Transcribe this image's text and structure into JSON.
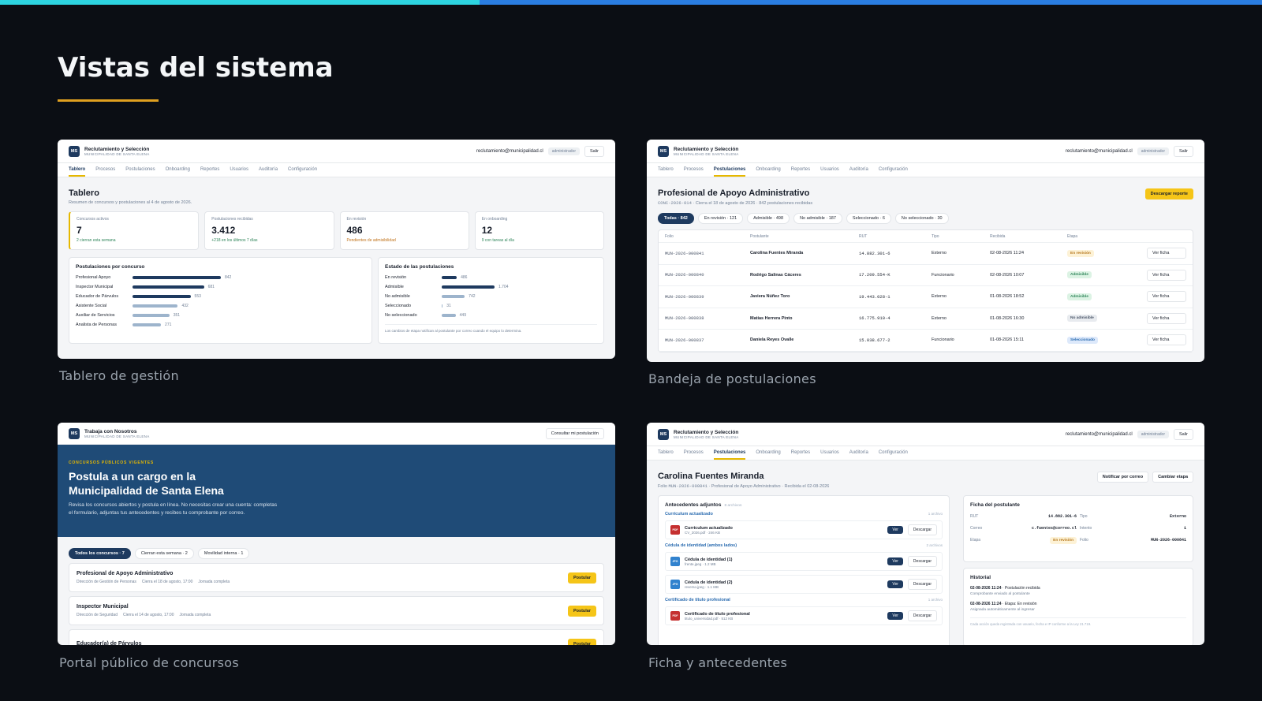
{
  "header": {
    "title": "Vistas del sistema"
  },
  "app": {
    "logo": "MS",
    "name": "Reclutamiento y Selección",
    "org": "MUNICIPALIDAD DE SANTA ELENA",
    "email": "reclutamiento@municipalidad.cl",
    "role": "administrador",
    "logout": "Salir",
    "tabs": [
      "Tablero",
      "Procesos",
      "Postulaciones",
      "Onboarding",
      "Reportes",
      "Usuarios",
      "Auditoría",
      "Configuración"
    ]
  },
  "dashboard": {
    "caption": "Tablero de gestión",
    "active_tab": 0,
    "title": "Tablero",
    "subtitle": "Resumen de concursos y postulaciones al 4 de agosto de 2026.",
    "stats": [
      {
        "label": "Concursos activos",
        "value": "7",
        "note": "2 cierran esta semana",
        "note_color": "#2f855a"
      },
      {
        "label": "Postulaciones recibidas",
        "value": "3.412",
        "note": "+218 en los últimos 7 días",
        "note_color": "#2f855a"
      },
      {
        "label": "En revisión",
        "value": "486",
        "note": "Pendientes de admisibilidad",
        "note_color": "#c0721a"
      },
      {
        "label": "En onboarding",
        "value": "12",
        "note": "9 con tareas al día",
        "note_color": "#2f855a"
      }
    ],
    "charts": [
      {
        "title": "Postulaciones por concurso",
        "items": [
          {
            "name": "Profesional Apoyo",
            "value": 842,
            "color": "#1e3a5f"
          },
          {
            "name": "Inspector Municipal",
            "value": 681,
            "color": "#1e3a5f"
          },
          {
            "name": "Educador de Párvulos",
            "value": 553,
            "color": "#1e3a5f"
          },
          {
            "name": "Asistente Social",
            "value": 432,
            "color": "#9db4cc"
          },
          {
            "name": "Auxiliar de Servicios",
            "value": 351,
            "color": "#9db4cc"
          },
          {
            "name": "Analista de Personas",
            "value": 271,
            "color": "#9db4cc"
          }
        ]
      },
      {
        "title": "Estado de las postulaciones",
        "items": [
          {
            "name": "En revisión",
            "value": 486,
            "color": "#1e3a5f"
          },
          {
            "name": "Admisible",
            "value": 1704,
            "label": "1.704",
            "color": "#1e3a5f"
          },
          {
            "name": "No admisible",
            "value": 742,
            "color": "#9db4cc"
          },
          {
            "name": "Seleccionado",
            "value": 31,
            "color": "#9db4cc"
          },
          {
            "name": "No seleccionado",
            "value": 449,
            "color": "#9db4cc"
          }
        ],
        "note": "Los cambios de etapa notifican al postulante por correo cuando el equipo lo determina."
      }
    ]
  },
  "inbox": {
    "caption": "Bandeja de postulaciones",
    "active_tab": 2,
    "title": "Profesional de Apoyo Administrativo",
    "meta_code": "CONC-2026-014",
    "meta_text": "· Cierra el 18 de agosto de 2026 · 842 postulaciones recibidas",
    "download_button": "Descargar reporte",
    "active_filter": 0,
    "filters": [
      "Todas · 842",
      "En revisión · 121",
      "Admisible · 498",
      "No admisible · 187",
      "Seleccionado · 6",
      "No seleccionado · 30"
    ],
    "columns": [
      "Folio",
      "Postulante",
      "RUT",
      "Tipo",
      "Recibida",
      "Etapa"
    ],
    "row_action": "Ver ficha",
    "rows": [
      {
        "folio": "MUN-2026-000841",
        "name": "Carolina Fuentes Miranda",
        "rut": "14.882.301-6",
        "type": "Externo",
        "received": "02-08-2026 11:24",
        "stage": "En revisión",
        "stage_color": "#b7791f",
        "stage_bg": "#fdf2d6"
      },
      {
        "folio": "MUN-2026-000840",
        "name": "Rodrigo Salinas Cáceres",
        "rut": "17.209.554-K",
        "type": "Funcionario",
        "received": "02-08-2026 10:07",
        "stage": "Admisible",
        "stage_color": "#2f855a",
        "stage_bg": "#dcf3e4"
      },
      {
        "folio": "MUN-2026-000839",
        "name": "Javiera Núñez Toro",
        "rut": "19.443.028-1",
        "type": "Externo",
        "received": "01-08-2026 18:52",
        "stage": "Admisible",
        "stage_color": "#2f855a",
        "stage_bg": "#dcf3e4"
      },
      {
        "folio": "MUN-2026-000838",
        "name": "Matías Herrera Pinto",
        "rut": "16.775.910-4",
        "type": "Externo",
        "received": "01-08-2026 16:30",
        "stage": "No admisible",
        "stage_color": "#4a5568",
        "stage_bg": "#e8ebef"
      },
      {
        "folio": "MUN-2026-000837",
        "name": "Daniela Reyes Ovalle",
        "rut": "15.038.677-2",
        "type": "Funcionario",
        "received": "01-08-2026 15:11",
        "stage": "Seleccionado",
        "stage_color": "#2b6cb0",
        "stage_bg": "#dde9fb"
      }
    ]
  },
  "portal": {
    "caption": "Portal público de concursos",
    "brand": "Trabaja con Nosotros",
    "check_button": "Consultar mi postulación",
    "eyebrow": "CONCURSOS PÚBLICOS VIGENTES",
    "heading": "Postula a un cargo en la Municipalidad de Santa Elena",
    "description": "Revisa los concursos abiertos y postula en línea. No necesitas crear una cuenta: completas el formulario, adjuntas tus antecedentes y recibes tu comprobante por correo.",
    "active_filter": 0,
    "filters": [
      "Todos los concursos · 7",
      "Cierran esta semana · 2",
      "Movilidad interna · 1"
    ],
    "apply_button": "Postular",
    "jobs": [
      {
        "title": "Profesional de Apoyo Administrativo",
        "meta": [
          "Dirección de Gestión de Personas",
          "Cierra el 18 de agosto, 17:00",
          "Jornada completa"
        ]
      },
      {
        "title": "Inspector Municipal",
        "meta": [
          "Dirección de Seguridad",
          "Cierra el 14 de agosto, 17:00",
          "Jornada completa"
        ]
      },
      {
        "title": "Educador(a) de Párvulos"
      }
    ]
  },
  "profile": {
    "caption": "Ficha y antecedentes",
    "active_tab": 2,
    "title": "Carolina Fuentes Miranda",
    "meta_prefix": "Folio",
    "meta_code": "MUN-2026-000841",
    "meta_text": "· Profesional de Apoyo Administrativo · Recibida el 02-08-2026",
    "actions": [
      "Notificar por correo",
      "Cambiar etapa"
    ],
    "attachments": {
      "title": "Antecedentes adjuntos",
      "count": "8 archivos",
      "view_button": "Ver",
      "download_button": "Descargar",
      "groups": [
        {
          "title": "Currículum actualizado",
          "count": "1 archivo",
          "files": [
            {
              "type": "PDF",
              "name": "Currículum actualizado",
              "meta": "CV_2026.pdf · 246 KB"
            }
          ]
        },
        {
          "title": "Cédula de identidad (ambos lados)",
          "count": "2 archivos",
          "files": [
            {
              "type": "JPG",
              "name": "Cédula de identidad (1)",
              "meta": "frente.jpeg · 1.2 MB"
            },
            {
              "type": "JPG",
              "name": "Cédula de identidad (2)",
              "meta": "reverso.jpeg · 1.1 MB"
            }
          ]
        },
        {
          "title": "Certificado de título profesional",
          "count": "1 archivo",
          "files": [
            {
              "type": "PDF",
              "name": "Certificado de título profesional",
              "meta": "titulo_universidad.pdf · 512 KB"
            }
          ]
        }
      ]
    },
    "card": {
      "title": "Ficha del postulante",
      "fields": [
        {
          "label": "RUT",
          "value": "14.882.301-6"
        },
        {
          "label": "Tipo",
          "value": "Externo"
        },
        {
          "label": "Correo",
          "value": "c.fuentes@correo.cl"
        },
        {
          "label": "Intento",
          "value": "1"
        },
        {
          "label": "Etapa",
          "value": "En revisión",
          "color": "#b7791f",
          "bg": "#fdf2d6"
        },
        {
          "label": "Folio",
          "value": "MUN-2026-000841"
        }
      ]
    },
    "history": {
      "title": "Historial",
      "entries": [
        {
          "when": "02-08-2026 11:24",
          "what": "· Postulación recibida",
          "note": "Comprobante enviado al postulante"
        },
        {
          "when": "02-08-2026 11:24",
          "what": "· Etapa: En revisión",
          "note": "Asignada automáticamente al ingresar"
        }
      ],
      "footer": "Cada acción queda registrada con usuario, fecha e IP conforme a la Ley 21.719."
    }
  }
}
